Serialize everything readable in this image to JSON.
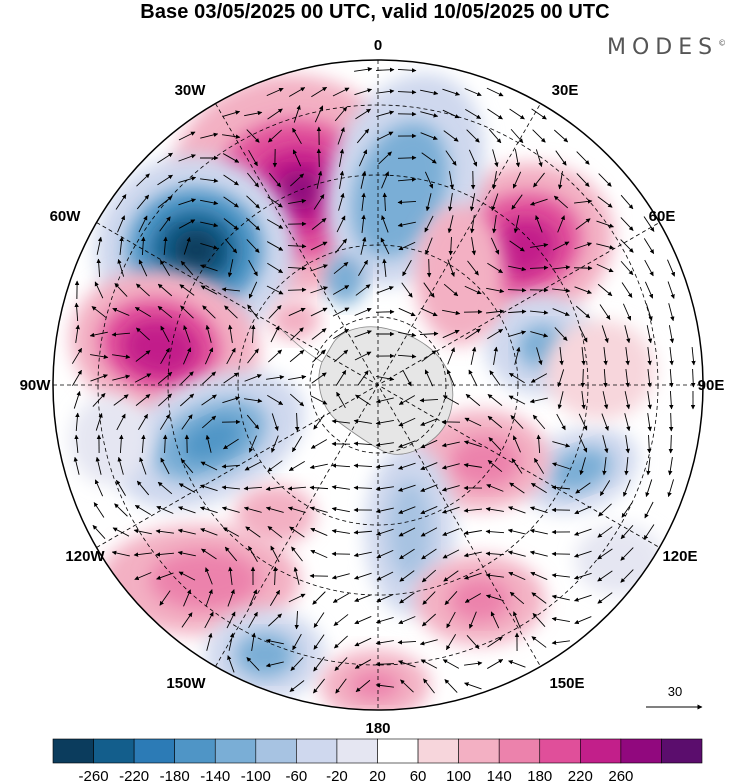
{
  "title": "Base 03/05/2025 00 UTC, valid 10/05/2025 00 UTC",
  "brand": "MODES",
  "brand_mark": "©",
  "map": {
    "projection": "south-polar-stereographic",
    "longitude_labels": [
      "0",
      "30E",
      "60E",
      "90E",
      "120E",
      "150E",
      "180",
      "150W",
      "120W",
      "90W",
      "60W",
      "30W"
    ],
    "wind_reference": "30"
  },
  "colorbar": {
    "ticks": [
      "-260",
      "-220",
      "-180",
      "-140",
      "-100",
      "-60",
      "-20",
      "20",
      "60",
      "100",
      "140",
      "180",
      "220",
      "260"
    ],
    "colors": [
      "#0b3c5d",
      "#135e8c",
      "#2c7bb6",
      "#4f95c6",
      "#7aaed6",
      "#a7c3e2",
      "#cfd8ee",
      "#e5e6f2",
      "#ffffff",
      "#f7d6dc",
      "#f3b0c3",
      "#ec82ac",
      "#e04f9a",
      "#c21f8a",
      "#91087e",
      "#5b0d6d"
    ]
  }
}
